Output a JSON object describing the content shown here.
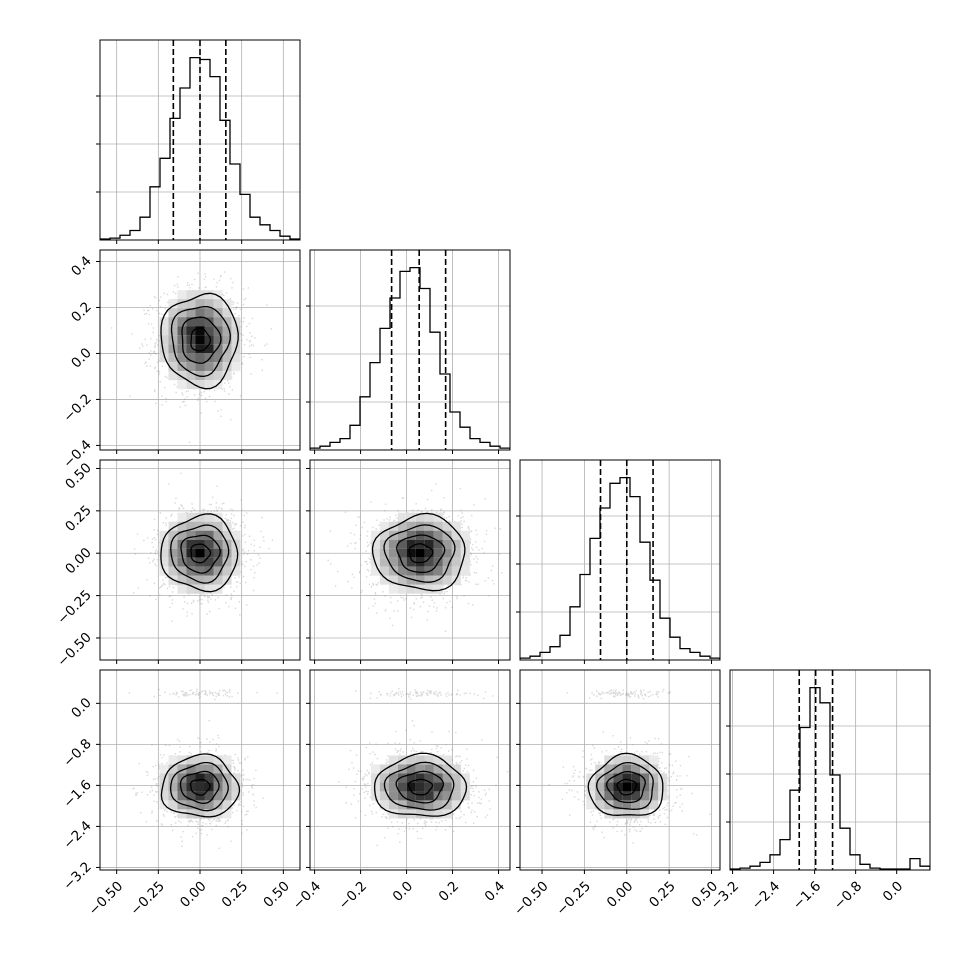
{
  "chart_data": {
    "type": "corner",
    "description_free": true,
    "parameters": [
      {
        "range": [
          -0.6,
          0.6
        ],
        "ticks": [
          -0.5,
          -0.25,
          0.0,
          0.25,
          0.5
        ],
        "tick_labels": [
          "−0.50",
          "−0.25",
          "0.00",
          "0.25",
          "0.50"
        ],
        "quantiles": [
          -0.16,
          0.0,
          0.155
        ],
        "hist": [
          0.005,
          0.01,
          0.025,
          0.05,
          0.12,
          0.28,
          0.43,
          0.64,
          0.8,
          0.96,
          0.95,
          0.86,
          0.63,
          0.4,
          0.24,
          0.12,
          0.08,
          0.05,
          0.02,
          0.005
        ]
      },
      {
        "range": [
          -0.42,
          0.45
        ],
        "ticks": [
          -0.4,
          -0.2,
          0.0,
          0.2,
          0.4
        ],
        "tick_labels": [
          "−0.4",
          "−0.2",
          "0.0",
          "0.2",
          "0.4"
        ],
        "quantiles": [
          -0.065,
          0.055,
          0.17
        ],
        "hist": [
          0.01,
          0.02,
          0.04,
          0.06,
          0.13,
          0.28,
          0.46,
          0.64,
          0.8,
          0.94,
          0.96,
          0.85,
          0.62,
          0.4,
          0.2,
          0.12,
          0.06,
          0.04,
          0.02,
          0.01
        ]
      },
      {
        "range": [
          -0.63,
          0.55
        ],
        "ticks": [
          -0.5,
          -0.25,
          0.0,
          0.25,
          0.5
        ],
        "tick_labels": [
          "−0.50",
          "−0.25",
          "0.00",
          "0.25",
          "0.50"
        ],
        "quantiles": [
          -0.155,
          0.0,
          0.155
        ],
        "hist": [
          0.01,
          0.02,
          0.04,
          0.07,
          0.13,
          0.28,
          0.45,
          0.64,
          0.8,
          0.93,
          0.96,
          0.86,
          0.62,
          0.42,
          0.22,
          0.12,
          0.06,
          0.04,
          0.02,
          0.01
        ]
      },
      {
        "range": [
          -3.25,
          0.65
        ],
        "ticks": [
          -3.2,
          -2.4,
          -1.6,
          -0.8,
          0.0
        ],
        "tick_labels": [
          "−3.2",
          "−2.4",
          "−1.6",
          "−0.8",
          "0.0"
        ],
        "quantiles": [
          -1.9,
          -1.58,
          -1.25
        ],
        "hist": [
          0.005,
          0.01,
          0.02,
          0.04,
          0.08,
          0.16,
          0.42,
          0.75,
          0.96,
          0.88,
          0.5,
          0.22,
          0.08,
          0.03,
          0.01,
          0.005,
          0.005,
          0.005,
          0.06,
          0.02
        ]
      }
    ],
    "pairs_2d": {
      "std": [
        0.115,
        0.1,
        0.11,
        0.3
      ],
      "center": [
        0.0,
        0.06,
        0.0,
        -1.63
      ],
      "outlier_mode": {
        "param": 3,
        "value": 0.2,
        "weight": 0.06,
        "std": 0.08
      }
    },
    "quantile_levels": [
      0.16,
      0.5,
      0.84
    ],
    "grid": true,
    "xlabel": "",
    "ylabel": "",
    "title": ""
  },
  "colors": {
    "line": "#000000",
    "grid": "#b0b0b0",
    "scatter": "#909090"
  }
}
